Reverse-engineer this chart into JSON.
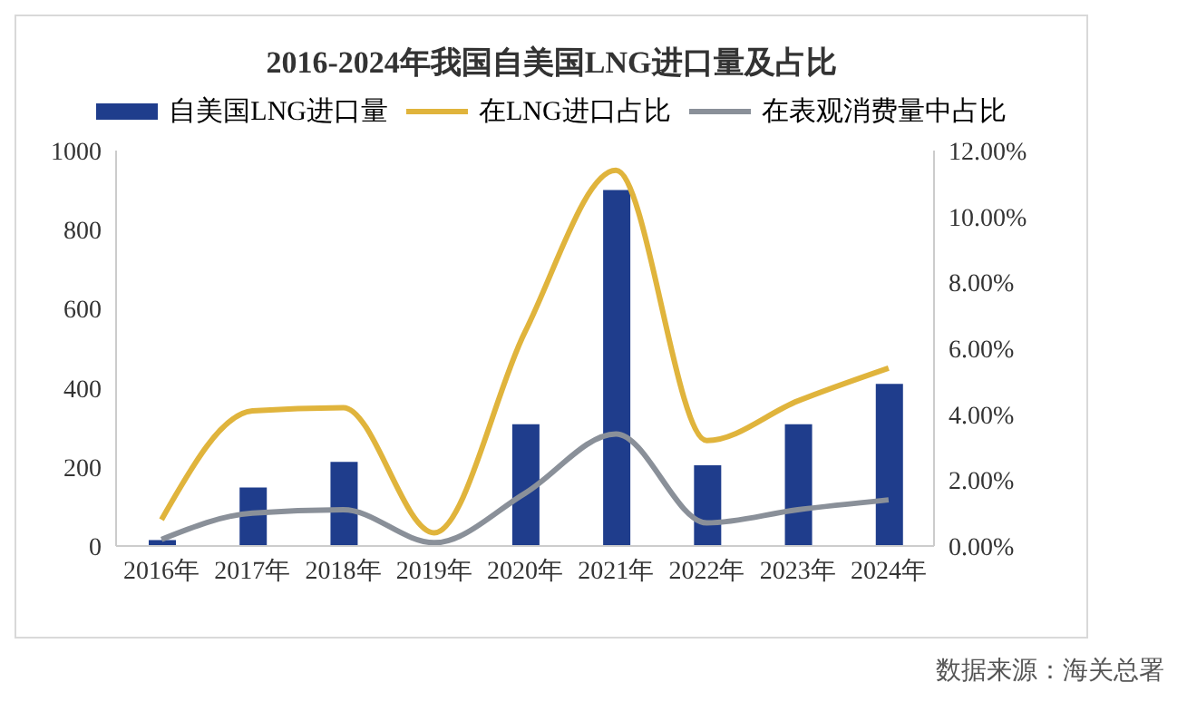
{
  "chart_data": {
    "type": "bar",
    "title": "2016-2024年我国自美国LNG进口量及占比",
    "categories": [
      "2016年",
      "2017年",
      "2018年",
      "2019年",
      "2020年",
      "2021年",
      "2022年",
      "2023年",
      "2024年"
    ],
    "series": [
      {
        "name": "自美国LNG进口量",
        "color": "#1f3d8c",
        "values": [
          15,
          148,
          213,
          null,
          308,
          900,
          204,
          308,
          410
        ]
      },
      {
        "name": "在LNG进口占比",
        "type": "line",
        "axis": "y2",
        "color": "#e0b43c",
        "values": [
          0.8,
          4.1,
          4.2,
          0.4,
          6.5,
          11.4,
          3.2,
          4.4,
          5.4
        ]
      },
      {
        "name": "在表观消费量中占比",
        "type": "line",
        "axis": "y2",
        "color": "#8a9099",
        "values": [
          0.2,
          1.0,
          1.1,
          0.1,
          1.6,
          3.4,
          0.7,
          1.1,
          1.4
        ]
      }
    ],
    "ylim": [
      0,
      1000
    ],
    "yticks": [
      0,
      200,
      400,
      600,
      800,
      1000
    ],
    "y2lim": [
      0,
      12
    ],
    "y2ticks": [
      {
        "value": 0,
        "label": "0.00%"
      },
      {
        "value": 2,
        "label": "2.00%"
      },
      {
        "value": 4,
        "label": "4.00%"
      },
      {
        "value": 6,
        "label": "6.00%"
      },
      {
        "value": 8,
        "label": "8.00%"
      },
      {
        "value": 10,
        "label": "10.00%"
      },
      {
        "value": 12,
        "label": "12.00%"
      }
    ],
    "legend": "top",
    "marker": "none",
    "annotations": [
      "数据来源：海关总署"
    ]
  }
}
